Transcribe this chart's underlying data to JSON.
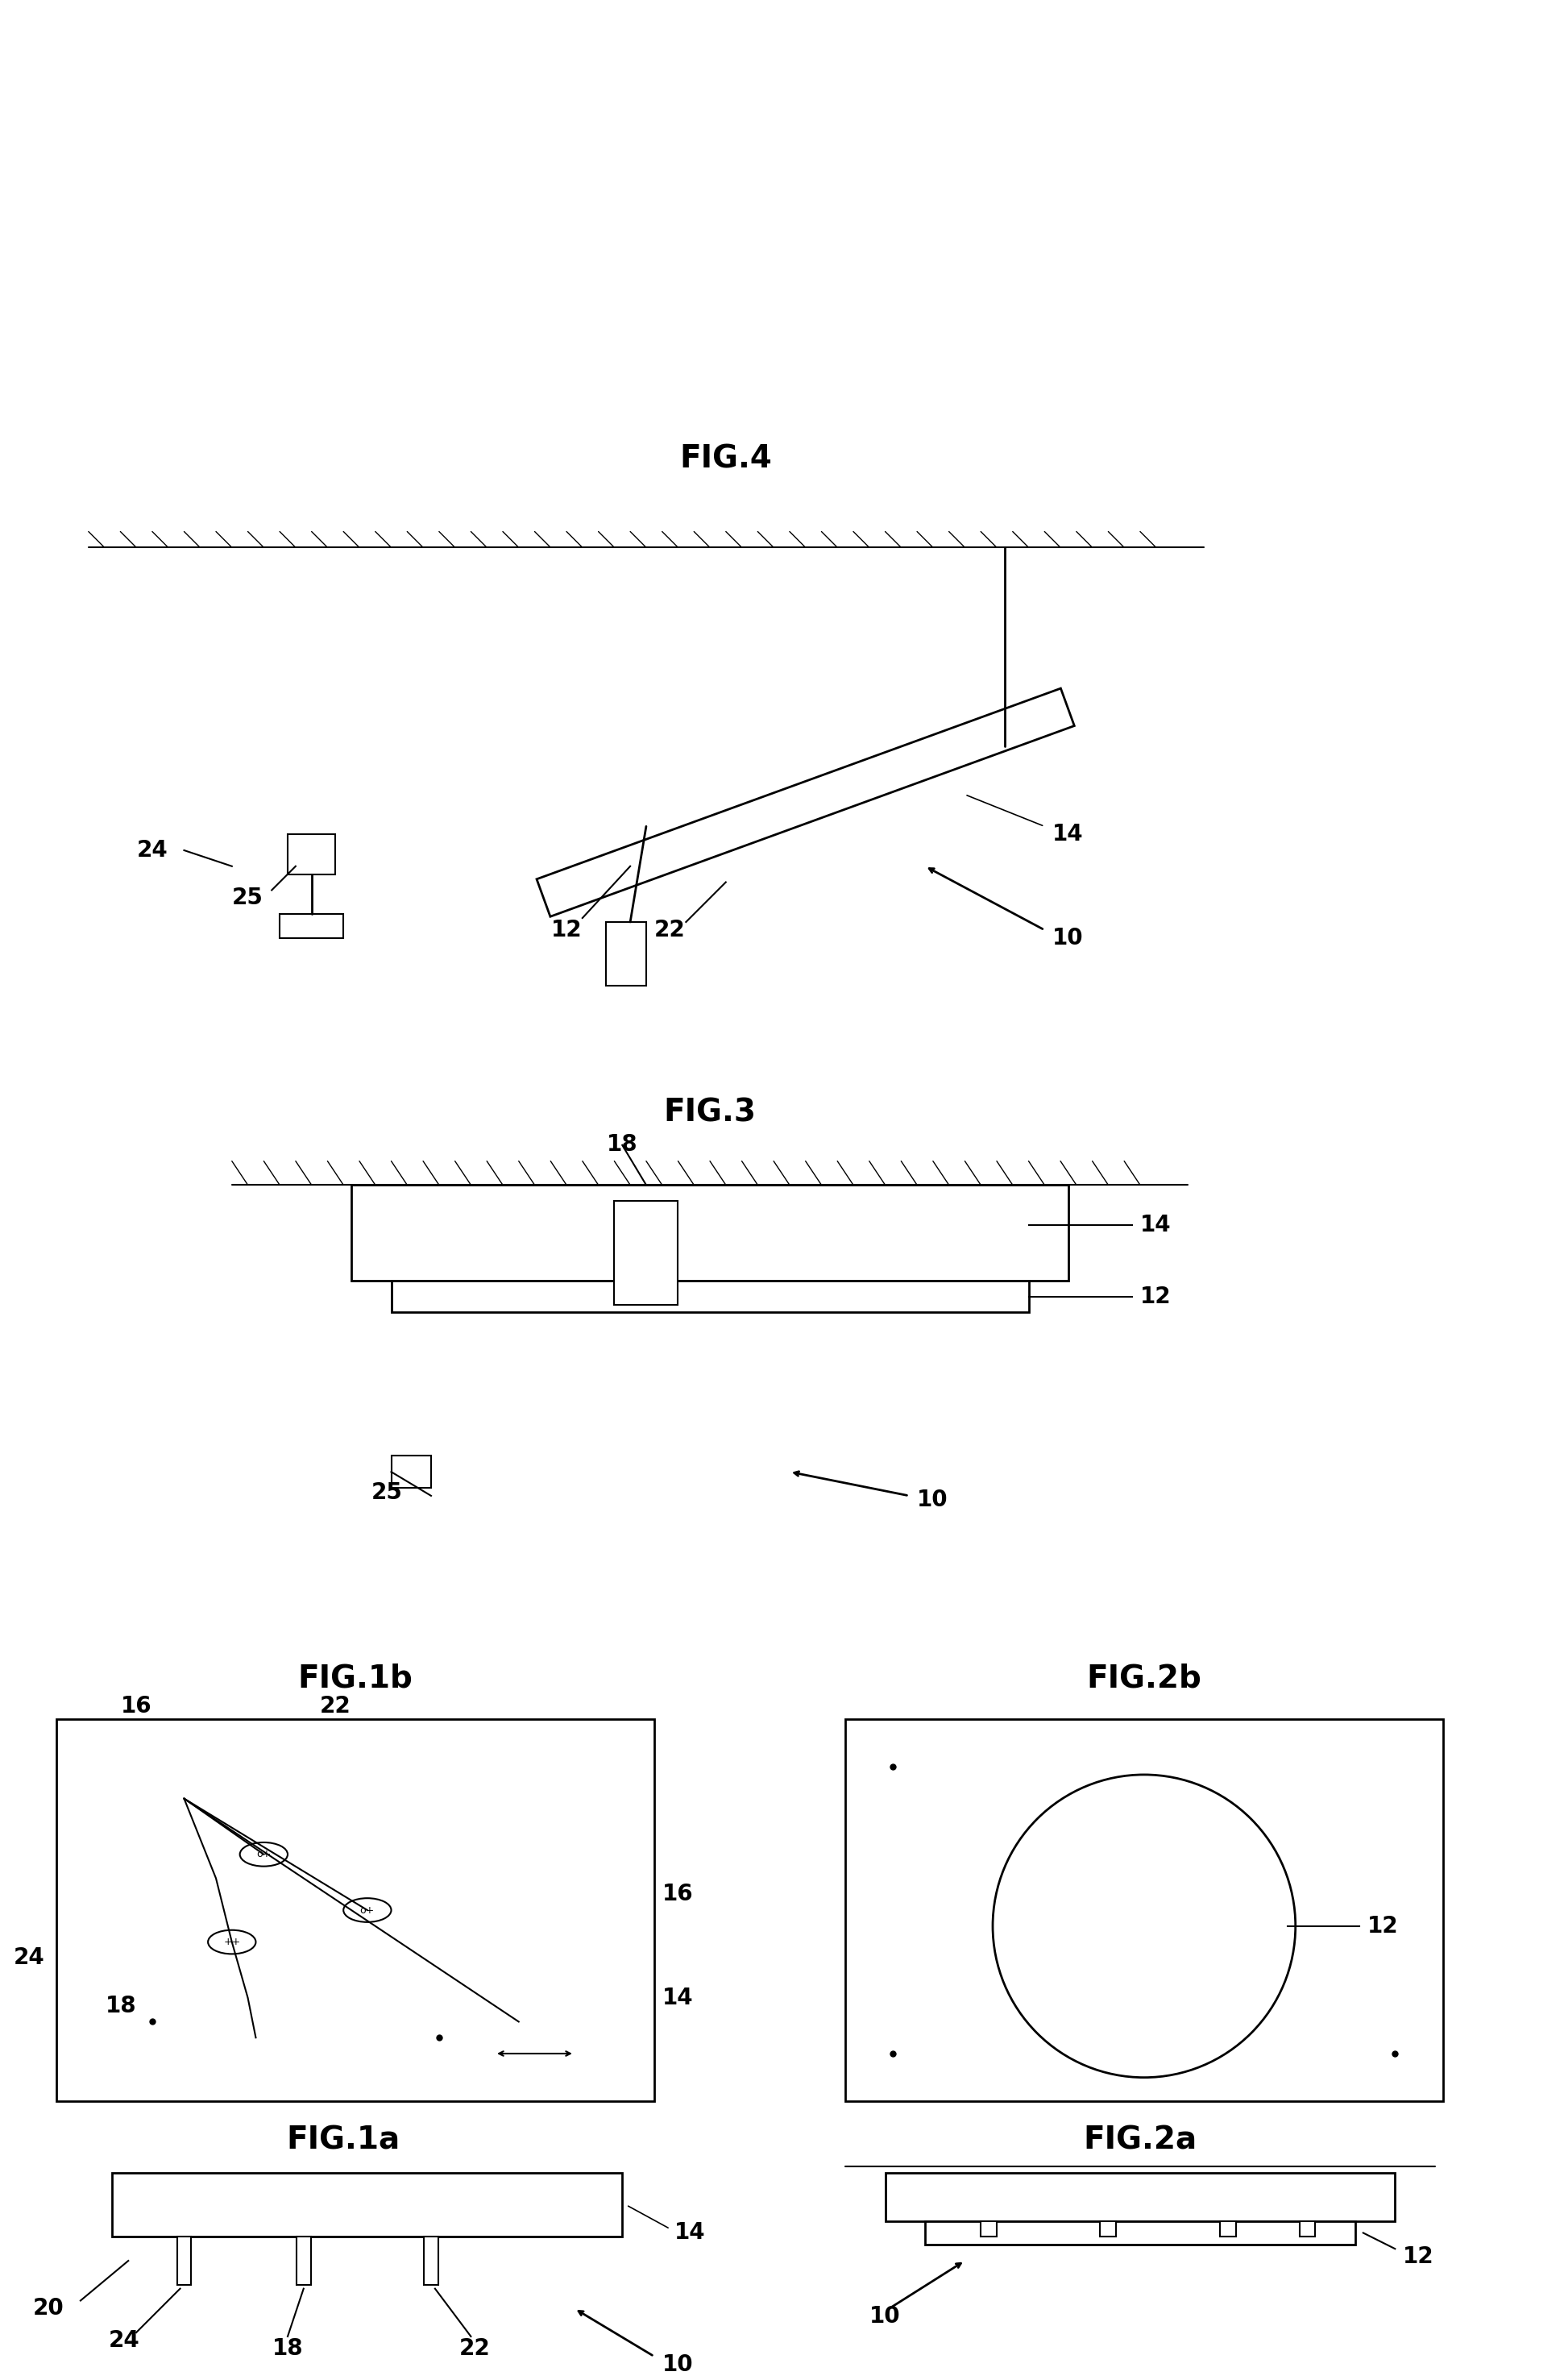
{
  "bg_color": "#ffffff",
  "line_color": "#000000",
  "fig_labels": [
    "FIG.1a",
    "FIG.1b",
    "FIG.2a",
    "FIG.2b",
    "FIG.3",
    "FIG.4"
  ],
  "label_fontsize": 28,
  "ref_fontsize": 20
}
